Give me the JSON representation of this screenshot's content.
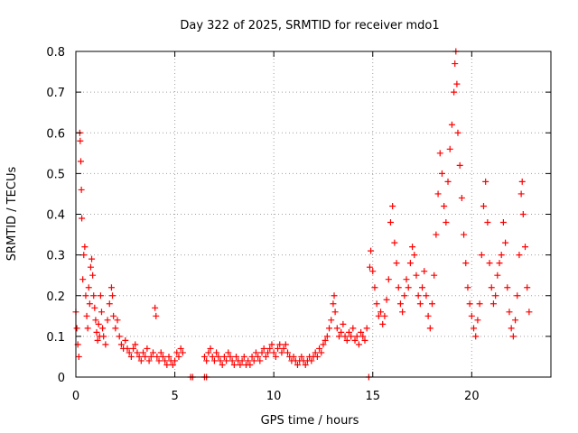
{
  "chart_data": {
    "type": "scatter",
    "title": "Day 322 of 2025, SRMTID for receiver mdo1",
    "xlabel": "GPS time / hours",
    "ylabel": "SRMTID / TECUs",
    "xlim": [
      0,
      24
    ],
    "ylim": [
      0,
      0.8
    ],
    "x_ticks": [
      0,
      5,
      10,
      15,
      20
    ],
    "y_ticks": [
      0,
      0.1,
      0.2,
      0.3,
      0.4,
      0.5,
      0.6,
      0.7,
      0.8
    ],
    "x_tick_labels": [
      "0",
      "5",
      "10",
      "15",
      "20"
    ],
    "y_tick_labels": [
      "0",
      "0.1",
      "0.2",
      "0.3",
      "0.4",
      "0.5",
      "0.6",
      "0.7",
      "0.8"
    ],
    "grid": true,
    "marker": "+",
    "color": "#ff0000",
    "series": [
      {
        "name": "SRMTID",
        "points": [
          [
            0.0,
            0.16
          ],
          [
            0.05,
            0.12
          ],
          [
            0.1,
            0.08
          ],
          [
            0.15,
            0.05
          ],
          [
            0.2,
            0.6
          ],
          [
            0.22,
            0.58
          ],
          [
            0.25,
            0.53
          ],
          [
            0.28,
            0.46
          ],
          [
            0.3,
            0.39
          ],
          [
            0.35,
            0.24
          ],
          [
            0.4,
            0.3
          ],
          [
            0.45,
            0.32
          ],
          [
            0.5,
            0.2
          ],
          [
            0.55,
            0.15
          ],
          [
            0.6,
            0.12
          ],
          [
            0.65,
            0.22
          ],
          [
            0.7,
            0.18
          ],
          [
            0.75,
            0.27
          ],
          [
            0.8,
            0.29
          ],
          [
            0.85,
            0.25
          ],
          [
            0.9,
            0.2
          ],
          [
            0.95,
            0.17
          ],
          [
            1.0,
            0.14
          ],
          [
            1.05,
            0.11
          ],
          [
            1.1,
            0.09
          ],
          [
            1.15,
            0.13
          ],
          [
            1.2,
            0.1
          ],
          [
            1.25,
            0.2
          ],
          [
            1.3,
            0.16
          ],
          [
            1.35,
            0.12
          ],
          [
            1.4,
            0.1
          ],
          [
            1.5,
            0.08
          ],
          [
            1.6,
            0.14
          ],
          [
            1.7,
            0.18
          ],
          [
            1.8,
            0.22
          ],
          [
            1.85,
            0.2
          ],
          [
            1.9,
            0.15
          ],
          [
            2.0,
            0.12
          ],
          [
            2.1,
            0.14
          ],
          [
            2.2,
            0.1
          ],
          [
            2.3,
            0.08
          ],
          [
            2.4,
            0.07
          ],
          [
            2.5,
            0.09
          ],
          [
            2.6,
            0.07
          ],
          [
            2.7,
            0.06
          ],
          [
            2.8,
            0.05
          ],
          [
            2.9,
            0.07
          ],
          [
            3.0,
            0.08
          ],
          [
            3.1,
            0.06
          ],
          [
            3.2,
            0.05
          ],
          [
            3.3,
            0.04
          ],
          [
            3.4,
            0.06
          ],
          [
            3.5,
            0.05
          ],
          [
            3.6,
            0.07
          ],
          [
            3.7,
            0.04
          ],
          [
            3.8,
            0.05
          ],
          [
            3.9,
            0.06
          ],
          [
            4.0,
            0.17
          ],
          [
            4.05,
            0.15
          ],
          [
            4.1,
            0.05
          ],
          [
            4.2,
            0.04
          ],
          [
            4.3,
            0.06
          ],
          [
            4.4,
            0.05
          ],
          [
            4.5,
            0.04
          ],
          [
            4.6,
            0.03
          ],
          [
            4.7,
            0.05
          ],
          [
            4.8,
            0.04
          ],
          [
            4.9,
            0.03
          ],
          [
            5.0,
            0.04
          ],
          [
            5.1,
            0.06
          ],
          [
            5.2,
            0.05
          ],
          [
            5.3,
            0.07
          ],
          [
            5.4,
            0.06
          ],
          [
            5.8,
            0.0
          ],
          [
            5.9,
            0.0
          ],
          [
            6.5,
            0.0
          ],
          [
            6.6,
            0.0
          ],
          [
            6.5,
            0.05
          ],
          [
            6.6,
            0.04
          ],
          [
            6.7,
            0.06
          ],
          [
            6.8,
            0.07
          ],
          [
            6.9,
            0.05
          ],
          [
            7.0,
            0.04
          ],
          [
            7.1,
            0.06
          ],
          [
            7.2,
            0.05
          ],
          [
            7.3,
            0.04
          ],
          [
            7.4,
            0.03
          ],
          [
            7.5,
            0.05
          ],
          [
            7.6,
            0.04
          ],
          [
            7.7,
            0.06
          ],
          [
            7.8,
            0.05
          ],
          [
            7.9,
            0.04
          ],
          [
            8.0,
            0.03
          ],
          [
            8.1,
            0.05
          ],
          [
            8.2,
            0.04
          ],
          [
            8.3,
            0.03
          ],
          [
            8.4,
            0.04
          ],
          [
            8.5,
            0.05
          ],
          [
            8.6,
            0.03
          ],
          [
            8.7,
            0.04
          ],
          [
            8.8,
            0.03
          ],
          [
            8.9,
            0.05
          ],
          [
            9.0,
            0.04
          ],
          [
            9.1,
            0.06
          ],
          [
            9.2,
            0.05
          ],
          [
            9.3,
            0.04
          ],
          [
            9.4,
            0.06
          ],
          [
            9.5,
            0.07
          ],
          [
            9.6,
            0.05
          ],
          [
            9.7,
            0.06
          ],
          [
            9.8,
            0.07
          ],
          [
            9.9,
            0.08
          ],
          [
            10.0,
            0.06
          ],
          [
            10.1,
            0.05
          ],
          [
            10.2,
            0.07
          ],
          [
            10.3,
            0.08
          ],
          [
            10.4,
            0.06
          ],
          [
            10.5,
            0.07
          ],
          [
            10.6,
            0.08
          ],
          [
            10.7,
            0.06
          ],
          [
            10.8,
            0.05
          ],
          [
            10.9,
            0.04
          ],
          [
            11.0,
            0.05
          ],
          [
            11.1,
            0.04
          ],
          [
            11.2,
            0.03
          ],
          [
            11.3,
            0.04
          ],
          [
            11.4,
            0.05
          ],
          [
            11.5,
            0.04
          ],
          [
            11.6,
            0.03
          ],
          [
            11.7,
            0.04
          ],
          [
            11.8,
            0.05
          ],
          [
            11.9,
            0.04
          ],
          [
            12.0,
            0.05
          ],
          [
            12.1,
            0.06
          ],
          [
            12.2,
            0.05
          ],
          [
            12.3,
            0.07
          ],
          [
            12.4,
            0.06
          ],
          [
            12.5,
            0.08
          ],
          [
            12.6,
            0.09
          ],
          [
            12.7,
            0.1
          ],
          [
            12.8,
            0.12
          ],
          [
            12.9,
            0.14
          ],
          [
            13.0,
            0.18
          ],
          [
            13.05,
            0.2
          ],
          [
            13.1,
            0.16
          ],
          [
            13.2,
            0.12
          ],
          [
            13.3,
            0.1
          ],
          [
            13.4,
            0.11
          ],
          [
            13.5,
            0.13
          ],
          [
            13.6,
            0.1
          ],
          [
            13.7,
            0.09
          ],
          [
            13.8,
            0.11
          ],
          [
            13.9,
            0.1
          ],
          [
            14.0,
            0.12
          ],
          [
            14.1,
            0.09
          ],
          [
            14.2,
            0.1
          ],
          [
            14.3,
            0.08
          ],
          [
            14.4,
            0.11
          ],
          [
            14.5,
            0.1
          ],
          [
            14.6,
            0.09
          ],
          [
            14.7,
            0.12
          ],
          [
            14.8,
            0.0
          ],
          [
            14.85,
            0.27
          ],
          [
            14.9,
            0.31
          ],
          [
            15.0,
            0.26
          ],
          [
            15.1,
            0.22
          ],
          [
            15.2,
            0.18
          ],
          [
            15.3,
            0.15
          ],
          [
            15.4,
            0.16
          ],
          [
            15.5,
            0.13
          ],
          [
            15.6,
            0.15
          ],
          [
            15.7,
            0.19
          ],
          [
            15.8,
            0.24
          ],
          [
            15.9,
            0.38
          ],
          [
            16.0,
            0.42
          ],
          [
            16.1,
            0.33
          ],
          [
            16.2,
            0.28
          ],
          [
            16.3,
            0.22
          ],
          [
            16.4,
            0.18
          ],
          [
            16.5,
            0.16
          ],
          [
            16.6,
            0.2
          ],
          [
            16.7,
            0.24
          ],
          [
            16.8,
            0.22
          ],
          [
            16.9,
            0.28
          ],
          [
            17.0,
            0.32
          ],
          [
            17.1,
            0.3
          ],
          [
            17.2,
            0.25
          ],
          [
            17.3,
            0.2
          ],
          [
            17.4,
            0.18
          ],
          [
            17.5,
            0.22
          ],
          [
            17.6,
            0.26
          ],
          [
            17.7,
            0.2
          ],
          [
            17.8,
            0.15
          ],
          [
            17.9,
            0.12
          ],
          [
            18.0,
            0.18
          ],
          [
            18.1,
            0.25
          ],
          [
            18.2,
            0.35
          ],
          [
            18.3,
            0.45
          ],
          [
            18.4,
            0.55
          ],
          [
            18.5,
            0.5
          ],
          [
            18.6,
            0.42
          ],
          [
            18.7,
            0.38
          ],
          [
            18.8,
            0.48
          ],
          [
            18.9,
            0.56
          ],
          [
            19.0,
            0.62
          ],
          [
            19.1,
            0.7
          ],
          [
            19.15,
            0.77
          ],
          [
            19.2,
            0.8
          ],
          [
            19.25,
            0.72
          ],
          [
            19.3,
            0.6
          ],
          [
            19.4,
            0.52
          ],
          [
            19.5,
            0.44
          ],
          [
            19.6,
            0.35
          ],
          [
            19.7,
            0.28
          ],
          [
            19.8,
            0.22
          ],
          [
            19.9,
            0.18
          ],
          [
            20.0,
            0.15
          ],
          [
            20.1,
            0.12
          ],
          [
            20.2,
            0.1
          ],
          [
            20.3,
            0.14
          ],
          [
            20.4,
            0.18
          ],
          [
            20.5,
            0.3
          ],
          [
            20.6,
            0.42
          ],
          [
            20.7,
            0.48
          ],
          [
            20.8,
            0.38
          ],
          [
            20.9,
            0.28
          ],
          [
            21.0,
            0.22
          ],
          [
            21.1,
            0.18
          ],
          [
            21.2,
            0.2
          ],
          [
            21.3,
            0.25
          ],
          [
            21.4,
            0.28
          ],
          [
            21.5,
            0.3
          ],
          [
            21.6,
            0.38
          ],
          [
            21.7,
            0.33
          ],
          [
            21.8,
            0.22
          ],
          [
            21.9,
            0.16
          ],
          [
            22.0,
            0.12
          ],
          [
            22.1,
            0.1
          ],
          [
            22.2,
            0.14
          ],
          [
            22.3,
            0.2
          ],
          [
            22.4,
            0.3
          ],
          [
            22.5,
            0.45
          ],
          [
            22.55,
            0.48
          ],
          [
            22.6,
            0.4
          ],
          [
            22.7,
            0.32
          ],
          [
            22.8,
            0.22
          ],
          [
            22.9,
            0.16
          ]
        ]
      }
    ]
  }
}
